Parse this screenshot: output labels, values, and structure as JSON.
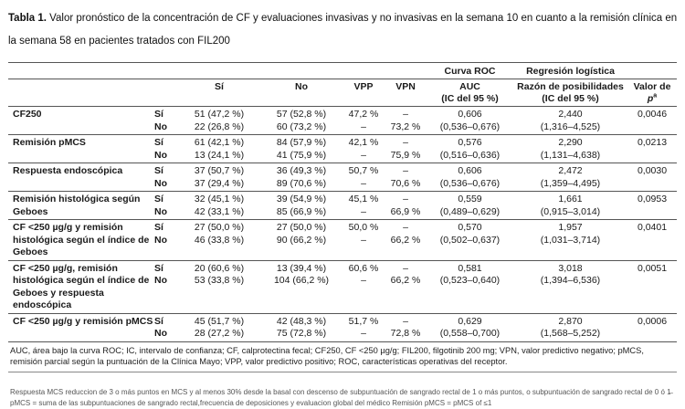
{
  "title": {
    "label": "Tabla 1.",
    "text": "Valor pronóstico de la concentración de CF y evaluaciones invasivas y no invasivas en la semana 10 en cuanto a la remisión clínica en la semana 58 en pacientes tratados con FIL200"
  },
  "table": {
    "group_headers": [
      {
        "label": "Curva ROC"
      },
      {
        "label": "Regresión logística"
      }
    ],
    "col_headers": {
      "si": "Sí",
      "no": "No",
      "vpp": "VPP",
      "vpn": "VPN",
      "auc_line1": "AUC",
      "auc_line2": "(IC del 95 %)",
      "or_line1": "Razón de posibilidades",
      "or_line2": "(IC del 95 %)",
      "p_prefix": "Valor de ",
      "p_italic": "p",
      "p_sup": "a"
    },
    "sub_yes": "Sí",
    "sub_no": "No",
    "rows": [
      {
        "label": "CF250",
        "yes": {
          "count_yes": "51 (47,2 %)",
          "count_no": "57 (52,8 %)",
          "vpp": "47,2 %",
          "vpn": "–",
          "auc": "0,606",
          "or": "2,440",
          "p": "0,0046"
        },
        "no": {
          "count_yes": "22 (26,8 %)",
          "count_no": "60 (73,2 %)",
          "vpp": "–",
          "vpn": "73,2 %",
          "auc": "(0,536–0,676)",
          "or": "(1,316–4,525)",
          "p": ""
        }
      },
      {
        "label": "Remisión pMCS",
        "yes": {
          "count_yes": "61 (42,1 %)",
          "count_no": "84 (57,9 %)",
          "vpp": "42,1 %",
          "vpn": "–",
          "auc": "0,576",
          "or": "2,290",
          "p": "0,0213"
        },
        "no": {
          "count_yes": "13 (24,1 %)",
          "count_no": "41 (75,9 %)",
          "vpp": "–",
          "vpn": "75,9 %",
          "auc": "(0,516–0,636)",
          "or": "(1,131–4,638)",
          "p": ""
        }
      },
      {
        "label": "Respuesta endoscópica",
        "yes": {
          "count_yes": "37 (50,7 %)",
          "count_no": "36 (49,3 %)",
          "vpp": "50,7 %",
          "vpn": "–",
          "auc": "0,606",
          "or": "2,472",
          "p": "0,0030"
        },
        "no": {
          "count_yes": "37 (29,4 %)",
          "count_no": "89 (70,6 %)",
          "vpp": "–",
          "vpn": "70,6 %",
          "auc": "(0,536–0,676)",
          "or": "(1,359–4,495)",
          "p": ""
        }
      },
      {
        "label": "Remisión histológica según Geboes",
        "yes": {
          "count_yes": "32 (45,1 %)",
          "count_no": "39 (54,9 %)",
          "vpp": "45,1 %",
          "vpn": "–",
          "auc": "0,559",
          "or": "1,661",
          "p": "0,0953"
        },
        "no": {
          "count_yes": "42 (33,1 %)",
          "count_no": "85 (66,9 %)",
          "vpp": "–",
          "vpn": "66,9 %",
          "auc": "(0,489–0,629)",
          "or": "(0,915–3,014)",
          "p": ""
        }
      },
      {
        "label": "CF <250 µg/g y remisión histológica según el índice de Geboes",
        "yes": {
          "count_yes": "27 (50,0 %)",
          "count_no": "27 (50,0 %)",
          "vpp": "50,0 %",
          "vpn": "–",
          "auc": "0,570",
          "or": "1,957",
          "p": "0,0401"
        },
        "no": {
          "count_yes": "46 (33,8 %)",
          "count_no": "90 (66,2 %)",
          "vpp": "–",
          "vpn": "66,2 %",
          "auc": "(0,502–0,637)",
          "or": "(1,031–3,714)",
          "p": ""
        }
      },
      {
        "label": "CF <250 µg/g, remisión histológica según el índice de Geboes y respuesta endoscópica",
        "yes": {
          "count_yes": "20 (60,6 %)",
          "count_no": "13 (39,4 %)",
          "vpp": "60,6 %",
          "vpn": "–",
          "auc": "0,581",
          "or": "3,018",
          "p": "0,0051"
        },
        "no": {
          "count_yes": "53 (33,8 %)",
          "count_no": "104 (66,2 %)",
          "vpp": "–",
          "vpn": "66,2 %",
          "auc": "(0,523–0,640)",
          "or": "(1,394–6,536)",
          "p": ""
        }
      },
      {
        "label": "CF <250 µg/g y remisión pMCS",
        "yes": {
          "count_yes": "45 (51,7 %)",
          "count_no": "42 (48,3 %)",
          "vpp": "51,7 %",
          "vpn": "–",
          "auc": "0,629",
          "or": "2,870",
          "p": "0,0006"
        },
        "no": {
          "count_yes": "28 (27,2 %)",
          "count_no": "75 (72,8 %)",
          "vpp": "–",
          "vpn": "72,8 %",
          "auc": "(0,558–0,700)",
          "or": "(1,568–5,252)",
          "p": ""
        }
      }
    ]
  },
  "footnote": "AUC, área bajo la curva ROC; IC, intervalo de confianza; CF, calprotectina fecal; CF250, CF <250 µg/g; FIL200, filgotinib 200 mg; VPN, valor predictivo negativo; pMCS, remisión parcial según la puntuación de la Clínica Mayo; VPP, valor predictivo positivo; ROC, características operativas del receptor.",
  "notes": [
    "Respuesta MCS reduccion de 3 o más puntos  en MCS y al menos 30% desde la basal con descenso  de subpuntuación de sangrado rectal de 1 o más puntos, o subpuntuación de sangrado rectal de 0 ó 1̶",
    "pMCS = suma de las subpuntuaciones de sangrado rectal,frecuencia de deposiciones y evaluacion global del médico  Remisión pMCS = pMCS of ≤1"
  ]
}
